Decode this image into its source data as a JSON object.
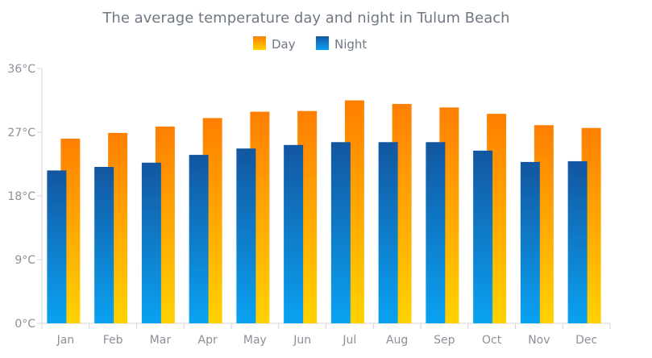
{
  "chart_data": {
    "type": "bar",
    "title": "The average temperature day and night in Tulum Beach",
    "xlabel": "",
    "ylabel": "",
    "categories": [
      "Jan",
      "Feb",
      "Mar",
      "Apr",
      "May",
      "Jun",
      "Jul",
      "Aug",
      "Sep",
      "Oct",
      "Nov",
      "Dec"
    ],
    "series": [
      {
        "name": "Night",
        "values": [
          21.6,
          22.1,
          22.7,
          23.8,
          24.7,
          25.2,
          25.6,
          25.6,
          25.6,
          24.4,
          22.8,
          22.9
        ],
        "gradient_top": "#1356a0",
        "gradient_bottom": "#0aa2f2"
      },
      {
        "name": "Day",
        "values": [
          26.1,
          26.9,
          27.8,
          29.0,
          29.9,
          30.0,
          31.5,
          31.0,
          30.5,
          29.6,
          28.0,
          27.6
        ],
        "gradient_top": "#ff7f00",
        "gradient_bottom": "#ffd200"
      }
    ],
    "y_ticks": [
      "0°C",
      "9°C",
      "18°C",
      "27°C",
      "36°C"
    ],
    "ylim": [
      0,
      36
    ],
    "grid": false,
    "legend": "top-center",
    "colors": {
      "title": "#6f7884",
      "axis_text": "#8b9098",
      "axis_line": "#d6d6d6"
    }
  }
}
